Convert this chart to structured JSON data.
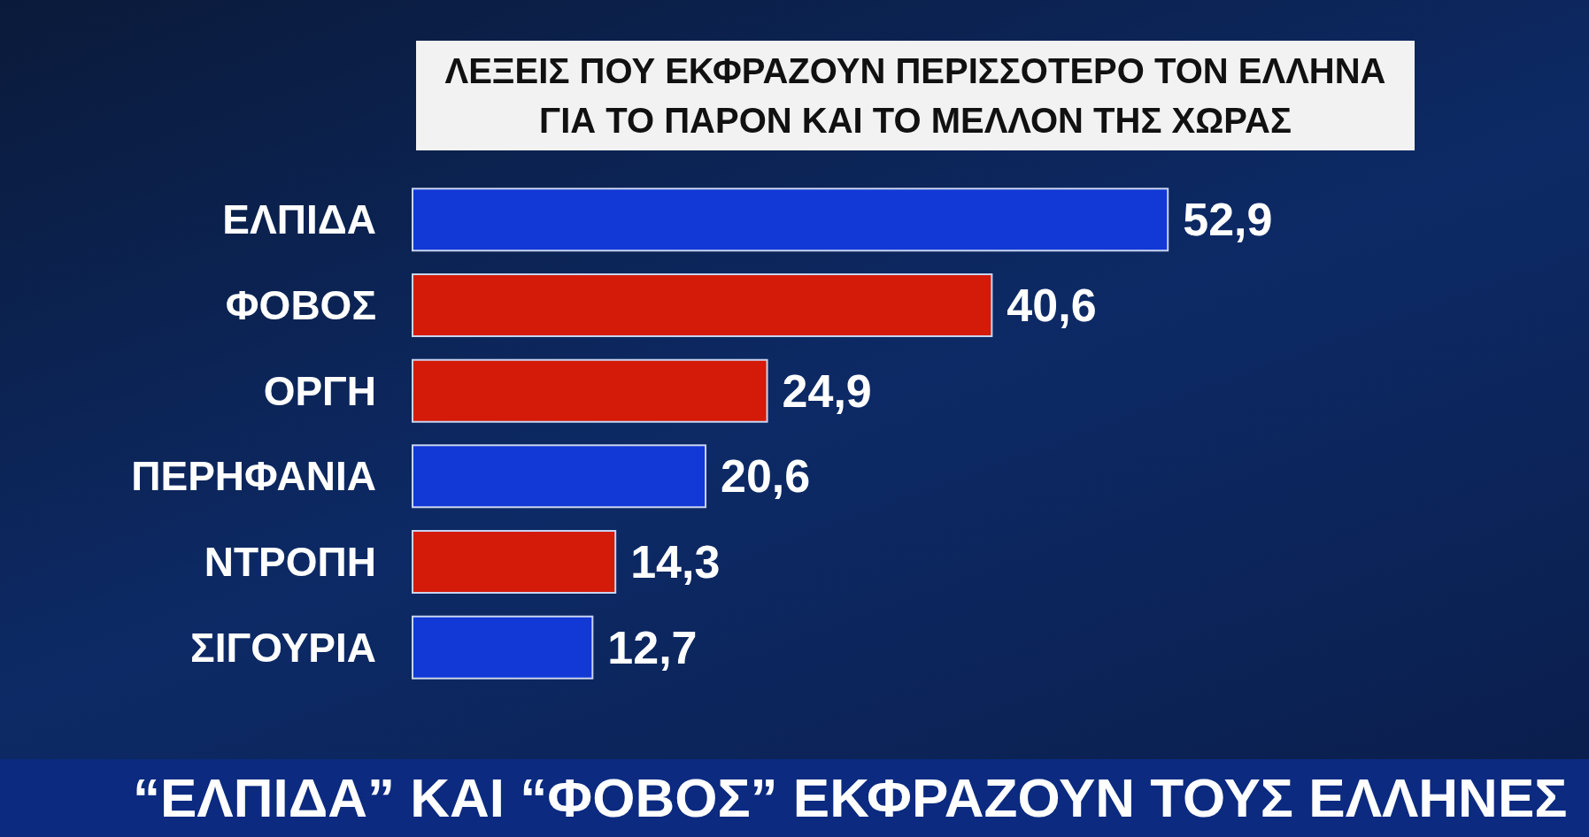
{
  "chart_data": {
    "type": "bar",
    "orientation": "horizontal",
    "title": "ΛΕΞΕΙΣ ΠΟΥ ΕΚΦΡΑΖΟΥΝ ΠΕΡΙΣΣΟΤΕΡΟ ΤΟΝ ΕΛΛΗΝΑ ΓΙΑ ΤΟ ΠΑΡΟΝ ΚΑΙ ΤΟ ΜΕΛΛΟΝ ΤΗΣ ΧΩΡΑΣ",
    "categories": [
      "ΕΛΠΙΔΑ",
      "ΦΟΒΟΣ",
      "ΟΡΓΗ",
      "ΠΕΡΗΦΑΝΙΑ",
      "ΝΤΡΟΠΗ",
      "ΣΙΓΟΥΡΙΑ"
    ],
    "values": [
      52.9,
      40.6,
      24.9,
      20.6,
      14.3,
      12.7
    ],
    "colors": [
      "#1238d6",
      "#d41a08",
      "#d41a08",
      "#1238d6",
      "#d41a08",
      "#1238d6"
    ],
    "value_labels": [
      "52,9",
      "40,6",
      "24,9",
      "20,6",
      "14,3",
      "12,7"
    ],
    "annotations": [
      "“ΕΛΠΙΔΑ” ΚΑΙ “ΦΟΒΟΣ” ΕΚΦΡΑΖΟΥΝ ΤΟΥΣ ΕΛΛΗΝΕΣ"
    ]
  }
}
